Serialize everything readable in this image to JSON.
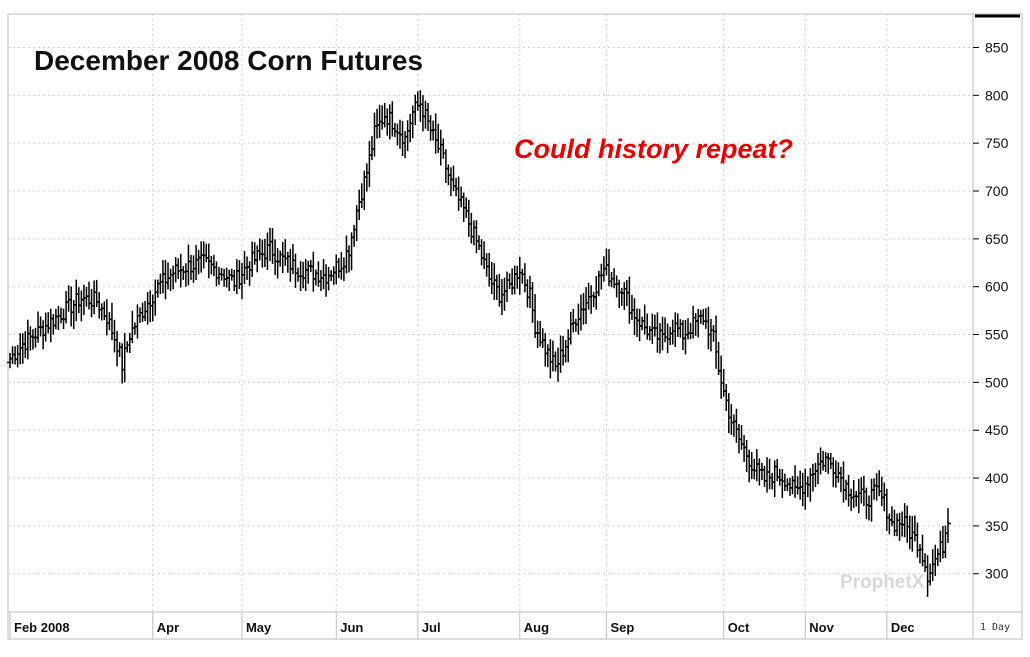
{
  "chart_data": {
    "type": "ohlc",
    "title": "December 2008 Corn Futures",
    "annotation": "Could history repeat?",
    "interval_label": "1 Day",
    "watermark": "ProphetX",
    "ylim": [
      260,
      885
    ],
    "yticks": [
      300,
      350,
      400,
      450,
      500,
      550,
      600,
      650,
      700,
      750,
      800,
      850
    ],
    "grid": true,
    "x_axis_labels": [
      "Feb 2008",
      "Apr",
      "May",
      "Jun",
      "Jul",
      "Aug",
      "Sep",
      "Oct",
      "Nov",
      "Dec"
    ],
    "series": [
      {
        "keypoints": [
          [
            0,
            525
          ],
          [
            5,
            540
          ],
          [
            12,
            555
          ],
          [
            20,
            572
          ],
          [
            28,
            588
          ],
          [
            34,
            585
          ],
          [
            38,
            568
          ],
          [
            42,
            540
          ],
          [
            44,
            518
          ],
          [
            47,
            550
          ],
          [
            52,
            575
          ],
          [
            58,
            600
          ],
          [
            64,
            615
          ],
          [
            70,
            622
          ],
          [
            76,
            625
          ],
          [
            83,
            615
          ],
          [
            88,
            605
          ],
          [
            94,
            625
          ],
          [
            102,
            640
          ],
          [
            106,
            630
          ],
          [
            112,
            620
          ],
          [
            118,
            615
          ],
          [
            124,
            612
          ],
          [
            130,
            625
          ],
          [
            133,
            640
          ],
          [
            136,
            680
          ],
          [
            140,
            720
          ],
          [
            143,
            760
          ],
          [
            147,
            780
          ],
          [
            151,
            770
          ],
          [
            155,
            755
          ],
          [
            158,
            782
          ],
          [
            161,
            792
          ],
          [
            164,
            770
          ],
          [
            167,
            750
          ],
          [
            169,
            740
          ],
          [
            171,
            725
          ],
          [
            174,
            700
          ],
          [
            178,
            680
          ],
          [
            181,
            660
          ],
          [
            184,
            640
          ],
          [
            188,
            608
          ],
          [
            192,
            592
          ],
          [
            196,
            600
          ],
          [
            200,
            620
          ],
          [
            204,
            590
          ],
          [
            206,
            560
          ],
          [
            210,
            535
          ],
          [
            214,
            515
          ],
          [
            218,
            540
          ],
          [
            222,
            568
          ],
          [
            226,
            585
          ],
          [
            230,
            602
          ],
          [
            233,
            618
          ],
          [
            236,
            610
          ],
          [
            240,
            600
          ],
          [
            244,
            575
          ],
          [
            248,
            560
          ],
          [
            252,
            550
          ],
          [
            256,
            545
          ],
          [
            260,
            560
          ],
          [
            264,
            550
          ],
          [
            268,
            560
          ],
          [
            272,
            568
          ],
          [
            276,
            545
          ],
          [
            278,
            515
          ],
          [
            280,
            490
          ],
          [
            283,
            460
          ],
          [
            286,
            440
          ],
          [
            289,
            425
          ],
          [
            292,
            410
          ],
          [
            296,
            398
          ],
          [
            300,
            405
          ],
          [
            304,
            400
          ],
          [
            308,
            385
          ],
          [
            312,
            395
          ],
          [
            316,
            412
          ],
          [
            320,
            420
          ],
          [
            324,
            410
          ],
          [
            328,
            392
          ],
          [
            332,
            382
          ],
          [
            336,
            378
          ],
          [
            340,
            385
          ],
          [
            343,
            375
          ],
          [
            346,
            352
          ],
          [
            350,
            355
          ],
          [
            354,
            340
          ],
          [
            357,
            330
          ],
          [
            360,
            300
          ],
          [
            363,
            315
          ],
          [
            366,
            330
          ],
          [
            368,
            360
          ]
        ]
      }
    ],
    "month_starts": [
      0,
      56,
      91,
      128,
      160,
      200,
      234,
      280,
      312,
      344
    ]
  }
}
